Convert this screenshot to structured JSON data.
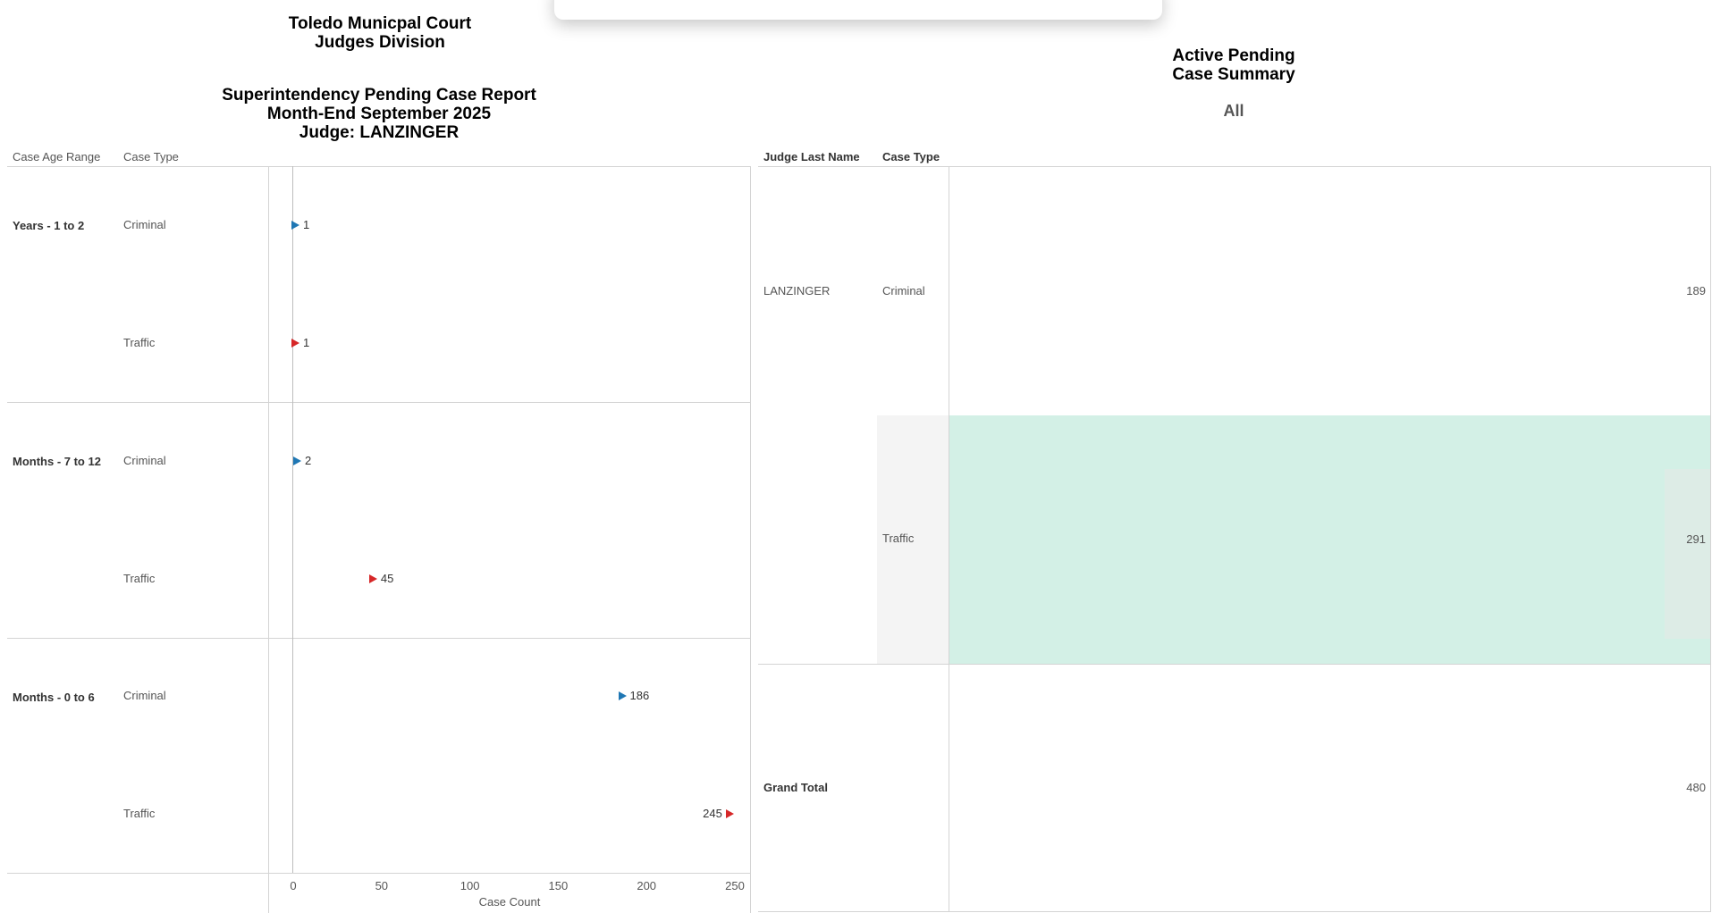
{
  "left_title": {
    "lines": [
      "Toledo Municpal Court",
      "Judges Division"
    ],
    "report_lines": [
      "Superintendency Pending Case Report",
      "Month-End September 2025",
      "Judge: LANZINGER"
    ]
  },
  "left_table": {
    "col_age": "Case Age Range",
    "col_type": "Case Type"
  },
  "chart_data": {
    "type": "scatter",
    "xlabel": "Case Count",
    "xlim": [
      0,
      250
    ],
    "ticks": [
      0,
      50,
      100,
      150,
      200,
      250
    ],
    "tick_labels": [
      "0",
      "50",
      "100",
      "150",
      "200",
      "250"
    ],
    "groups": [
      {
        "name": "Years - 1 to 2",
        "rows": [
          {
            "type": "Criminal",
            "value": 1,
            "label": "1",
            "color": "#1f77b4"
          },
          {
            "type": "Traffic",
            "value": 1,
            "label": "1",
            "color": "#d62728"
          }
        ]
      },
      {
        "name": "Months - 7 to 12",
        "rows": [
          {
            "type": "Criminal",
            "value": 2,
            "label": "2",
            "color": "#1f77b4"
          },
          {
            "type": "Traffic",
            "value": 45,
            "label": "45",
            "color": "#d62728"
          }
        ]
      },
      {
        "name": "Months - 0 to 6",
        "rows": [
          {
            "type": "Criminal",
            "value": 186,
            "label": "186",
            "color": "#1f77b4"
          },
          {
            "type": "Traffic",
            "value": 245,
            "label": "245",
            "color": "#d62728"
          }
        ]
      }
    ]
  },
  "right_title": {
    "lines": [
      "Active Pending",
      "Case Summary"
    ],
    "filter": "All"
  },
  "summary_table": {
    "col_judge": "Judge Last Name",
    "col_type": "Case Type",
    "judge": "LANZINGER",
    "rows": [
      {
        "type": "Criminal",
        "value": "189"
      },
      {
        "type": "Traffic",
        "value": "291",
        "highlight": "#d3f0e6"
      }
    ],
    "grand_total_label": "Grand Total",
    "grand_total_value": "480"
  }
}
